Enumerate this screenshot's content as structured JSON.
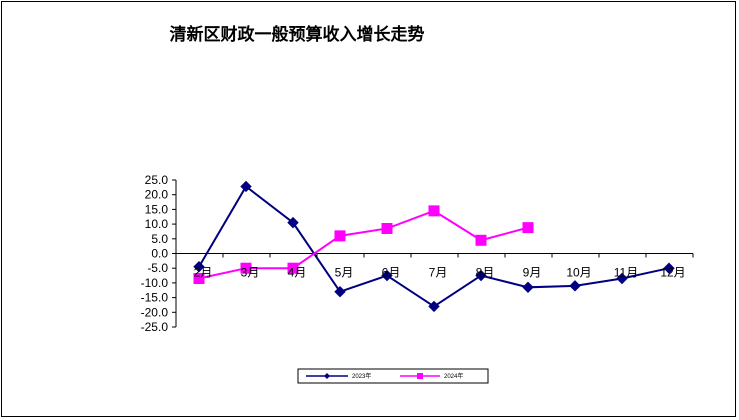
{
  "chart_data": {
    "type": "line",
    "title": "清新区财政一般预算收入增长走势",
    "categories": [
      "2月",
      "3月",
      "4月",
      "5月",
      "6月",
      "7月",
      "8月",
      "9月",
      "10月",
      "11月",
      "12月"
    ],
    "series": [
      {
        "name": "2023年",
        "color": "#000080",
        "marker": "diamond",
        "values": [
          -4.5,
          22.8,
          10.5,
          -13.0,
          -7.5,
          -18.0,
          -7.5,
          -11.5,
          -11.0,
          -8.5,
          -5.0
        ]
      },
      {
        "name": "2024年",
        "color": "#ff00ff",
        "marker": "square",
        "values": [
          -8.5,
          -5.0,
          -5.0,
          6.0,
          8.5,
          14.5,
          4.5,
          8.8,
          null,
          null,
          null
        ]
      }
    ],
    "yticks": [
      "25.0",
      "20.0",
      "15.0",
      "10.0",
      "5.0",
      "0.0",
      "-5.0",
      "-10.0",
      "-15.0",
      "-20.0",
      "-25.0"
    ],
    "ylim": [
      -25,
      25
    ],
    "xlabel": "",
    "ylabel": "",
    "grid": false,
    "legend_position": "bottom"
  }
}
